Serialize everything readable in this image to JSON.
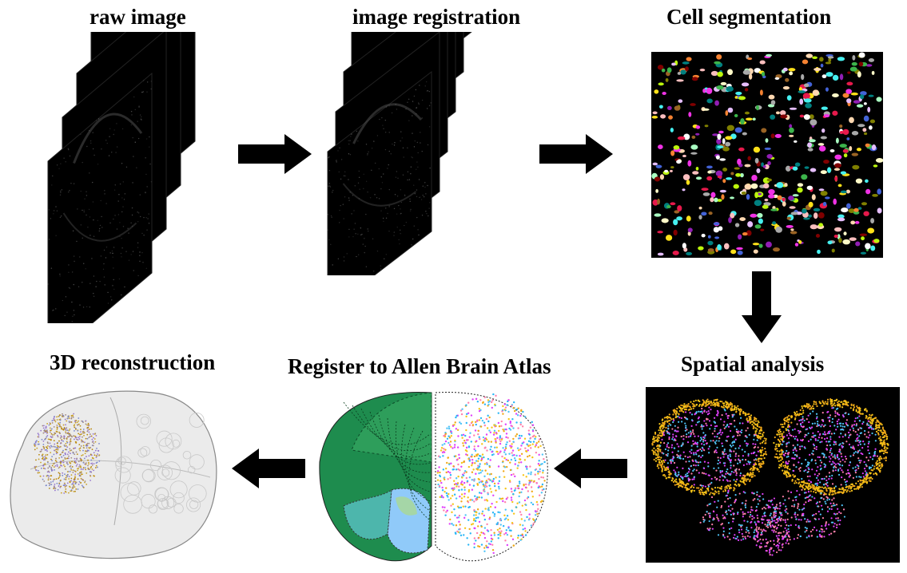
{
  "titles": {
    "raw": "raw image",
    "registration": "image registration",
    "segmentation": "Cell segmentation",
    "spatial": "Spatial analysis",
    "atlas": "Register to Allen Brain Atlas",
    "recon": "3D reconstruction"
  },
  "colors": {
    "arrow": "#000000",
    "background": "#ffffff",
    "cell_palette": [
      "#e6194b",
      "#3cb44b",
      "#ffe119",
      "#4363d8",
      "#f58231",
      "#911eb4",
      "#46f0f0",
      "#f032e6",
      "#bcf60c",
      "#fabebe",
      "#008080",
      "#e6beff",
      "#9a6324",
      "#fffac8",
      "#800000",
      "#aaffc3",
      "#808000",
      "#ffd8b1",
      "#a9a9a9",
      "#ffffff"
    ],
    "spatial_palette": [
      "#f5c518",
      "#f0a818",
      "#4fc3f7",
      "#e040fb",
      "#ff80ab",
      "#29b6f6"
    ],
    "atlas_green": [
      "#1e8c4e",
      "#2e9e5b",
      "#4caf50",
      "#66bb6a",
      "#81c784",
      "#a5d6a7",
      "#4db6ac",
      "#80cbc4",
      "#90caf9",
      "#b2dfdb"
    ]
  }
}
